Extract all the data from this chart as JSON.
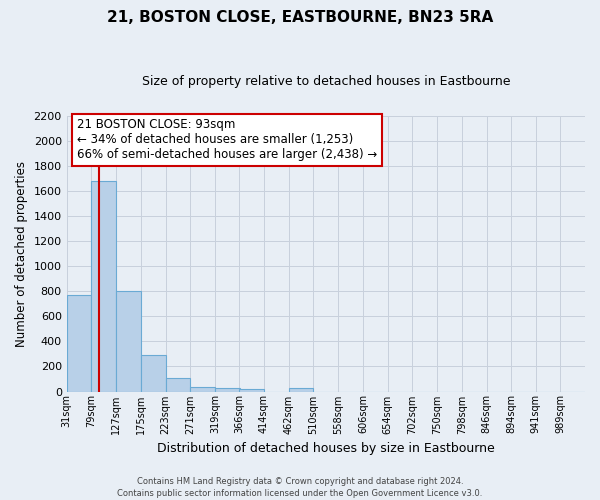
{
  "title": "21, BOSTON CLOSE, EASTBOURNE, BN23 5RA",
  "subtitle": "Size of property relative to detached houses in Eastbourne",
  "xlabel": "Distribution of detached houses by size in Eastbourne",
  "ylabel": "Number of detached properties",
  "bin_labels": [
    "31sqm",
    "79sqm",
    "127sqm",
    "175sqm",
    "223sqm",
    "271sqm",
    "319sqm",
    "366sqm",
    "414sqm",
    "462sqm",
    "510sqm",
    "558sqm",
    "606sqm",
    "654sqm",
    "702sqm",
    "750sqm",
    "798sqm",
    "846sqm",
    "894sqm",
    "941sqm",
    "989sqm"
  ],
  "bar_heights": [
    770,
    1680,
    800,
    290,
    110,
    38,
    30,
    20,
    0,
    25,
    0,
    0,
    0,
    0,
    0,
    0,
    0,
    0,
    0,
    0,
    0
  ],
  "bar_color": "#b8d0e8",
  "bar_edge_color": "#6aaad4",
  "grid_color": "#c8d0dc",
  "bg_color": "#e8eef5",
  "red_line_x": 93,
  "bin_edges": [
    31,
    79,
    127,
    175,
    223,
    271,
    319,
    366,
    414,
    462,
    510,
    558,
    606,
    654,
    702,
    750,
    798,
    846,
    894,
    941,
    989
  ],
  "bin_width": 48,
  "annotation_title": "21 BOSTON CLOSE: 93sqm",
  "annotation_line1": "← 34% of detached houses are smaller (1,253)",
  "annotation_line2": "66% of semi-detached houses are larger (2,438) →",
  "annotation_box_color": "#ffffff",
  "annotation_box_edge": "#cc0000",
  "ylim": [
    0,
    2200
  ],
  "yticks": [
    0,
    200,
    400,
    600,
    800,
    1000,
    1200,
    1400,
    1600,
    1800,
    2000,
    2200
  ],
  "footer_line1": "Contains HM Land Registry data © Crown copyright and database right 2024.",
  "footer_line2": "Contains public sector information licensed under the Open Government Licence v3.0."
}
